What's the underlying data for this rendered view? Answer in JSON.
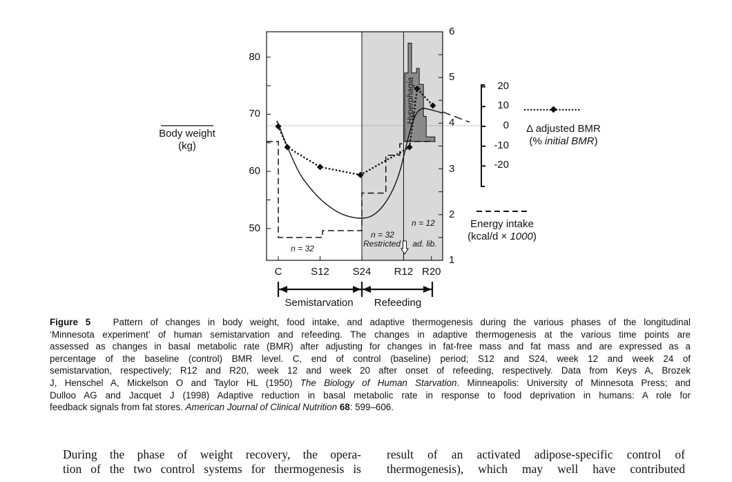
{
  "chart_data": {
    "type": "line",
    "title": "",
    "x_ticks": [
      {
        "label": "C",
        "week": 0
      },
      {
        "label": "S12",
        "week": 12
      },
      {
        "label": "S24",
        "week": 24
      },
      {
        "label": "R12",
        "week": 36
      },
      {
        "label": "R20",
        "week": 44
      }
    ],
    "xlim_weeks": [
      -3.4,
      47.2
    ],
    "left_axis": {
      "label": "Body weight (kg)",
      "ticks": [
        80,
        70,
        60,
        50
      ],
      "range": [
        45,
        84
      ]
    },
    "right_axis": {
      "label": "Energy intake (kcal/d × 1000)",
      "ticks": [
        6,
        5,
        4,
        3,
        2,
        1
      ],
      "range": [
        1,
        6
      ]
    },
    "bmr_axis": {
      "label": "Δ adjusted BMR (% initial BMR)",
      "ticks": [
        20,
        10,
        0,
        -10,
        -20
      ],
      "range": [
        -30,
        22
      ]
    },
    "body_weight_curve": [
      [
        -0.5,
        68.8
      ],
      [
        0,
        68.3
      ],
      [
        2.6,
        64.3
      ],
      [
        6,
        59.8
      ],
      [
        9,
        57.2
      ],
      [
        12,
        55.2
      ],
      [
        15,
        53.7
      ],
      [
        18,
        52.6
      ],
      [
        21,
        52
      ],
      [
        24,
        51.8
      ],
      [
        26.5,
        52.1
      ],
      [
        29,
        53.2
      ],
      [
        31.5,
        55.2
      ],
      [
        33.5,
        57.6
      ],
      [
        35,
        60.2
      ],
      [
        36.3,
        63.3
      ],
      [
        37.5,
        66.3
      ],
      [
        38.7,
        68.8
      ],
      [
        40,
        70.4
      ],
      [
        41.5,
        71
      ],
      [
        43,
        70.9
      ],
      [
        45,
        70.6
      ],
      [
        47.2,
        70.2
      ]
    ],
    "bmr_points": [
      [
        0,
        0
      ],
      [
        2.6,
        -10.5
      ],
      [
        12,
        -20.5
      ],
      [
        23.6,
        -24.5
      ],
      [
        37.7,
        -10.5
      ],
      [
        39.9,
        19
      ],
      [
        44.4,
        10.5
      ]
    ],
    "energy_intake_steps": [
      [
        -3.4,
        3.6
      ],
      [
        0,
        3.6
      ],
      [
        0,
        1.5
      ],
      [
        12.7,
        1.5
      ],
      [
        12.7,
        1.65
      ],
      [
        24,
        1.65
      ],
      [
        24,
        2.47
      ],
      [
        30.9,
        2.47
      ],
      [
        30.9,
        3.3
      ],
      [
        34.9,
        3.3
      ],
      [
        34.9,
        3.55
      ],
      [
        36.3,
        3.55
      ]
    ],
    "hyperphagia_base": 3.6,
    "hyperphagia_bars": [
      [
        36.3,
        37.3,
        5.1
      ],
      [
        37.3,
        38.3,
        5.75
      ],
      [
        38.3,
        39.7,
        5.1
      ],
      [
        39.7,
        40.5,
        5.2
      ],
      [
        40.5,
        41.7,
        4.85
      ],
      [
        41.7,
        42.5,
        4.15
      ],
      [
        42.5,
        45,
        3.7
      ]
    ],
    "refeeding_start_week": 24,
    "adlib_start_week": 36,
    "annotations": {
      "n32_semi": "n = 32",
      "n32_refeed": "n = 32",
      "restricted": "Restricted",
      "adlib": "ad. lib.",
      "n12": "n = 12",
      "hyperphagia": "Hyperphagia"
    },
    "phases": {
      "semistarvation": "Semistarvation",
      "refeeding": "Refeeding"
    },
    "legend": {
      "body_weight": [
        "Body weight",
        "(kg)"
      ],
      "bmr": [
        "Δ adjusted BMR",
        "(% ",
        "initial BMR",
        ")"
      ],
      "energy": [
        "Energy intake",
        "(kcal/d × ",
        "1000",
        ")"
      ]
    },
    "colors": {
      "shade": "#d9d9d9",
      "hyperphagia": "#8a8a8a",
      "ink": "#111111"
    }
  },
  "caption": {
    "lines": [
      [
        {
          "t": "Figure 5",
          "s": "b"
        },
        {
          "t": "   Pattern of changes in body weight, food intake, and adaptive thermogenesis during the various phases of the longitudinal",
          "s": ""
        }
      ],
      [
        {
          "t": "‘Minnesota experiment’ of human semistarvation and refeeding. The changes in adaptive thermogenesis at the various time points are",
          "s": ""
        }
      ],
      [
        {
          "t": "assessed as changes in basal metabolic rate (BMR) after adjusting for changes in fat-free mass and fat mass and are expressed as a",
          "s": ""
        }
      ],
      [
        {
          "t": "percentage of the baseline (control) BMR level. C, end of control (baseline) period; S12 and S24, week 12 and week 24 of",
          "s": ""
        }
      ],
      [
        {
          "t": "semistarvation, respectively; R12 and R20, week 12 and week 20 after onset of refeeding, respectively. Data from Keys A, Brozek",
          "s": ""
        }
      ],
      [
        {
          "t": "J, Henschel A, Mickelson O and Taylor HL (1950) ",
          "s": ""
        },
        {
          "t": "The Biology of Human Starvation",
          "s": "i"
        },
        {
          "t": ". Minneapolis: University of Minnesota Press; and",
          "s": ""
        }
      ],
      [
        {
          "t": "Dulloo AG and Jacquet J (1998) Adaptive reduction in basal metabolic rate in response to food deprivation in humans: A role for",
          "s": ""
        }
      ],
      [
        {
          "t": "feedback signals from fat stores. ",
          "s": ""
        },
        {
          "t": "American Journal of Clinical Nutrition",
          "s": "i"
        },
        {
          "t": " 68",
          "s": "b"
        },
        {
          "t": ": 599–606.",
          "s": ""
        }
      ]
    ]
  },
  "body_text": {
    "left": [
      "During the phase of weight recovery, the opera-",
      "tion of the two control systems for thermogenesis is"
    ],
    "right": [
      "result of an activated adipose-specific control of",
      "thermogenesis), which may well have contributed"
    ]
  }
}
